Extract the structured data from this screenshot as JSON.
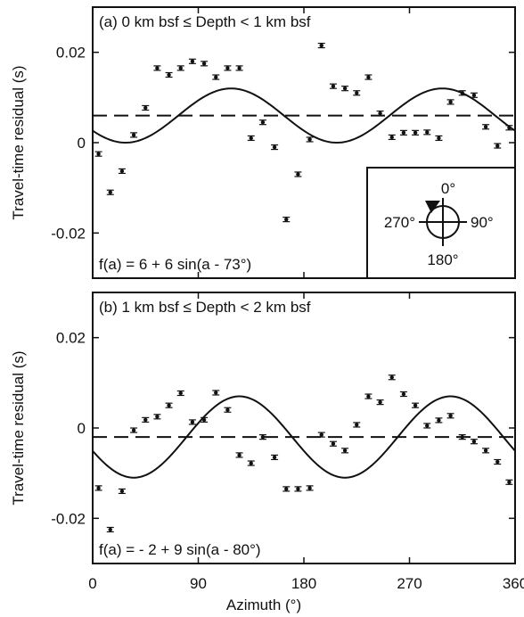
{
  "figure": {
    "xlabel": "Azimuth (°)",
    "ylabel": "Travel-time residual (s)",
    "xticks": [
      "0",
      "90",
      "180",
      "270",
      "360"
    ],
    "yticks": [
      "-0.02",
      "0",
      "0.02"
    ],
    "inset": {
      "n": "0°",
      "e": "90°",
      "s": "180°",
      "w": "270°"
    }
  },
  "chart_data": [
    {
      "type": "scatter",
      "panel": "a",
      "title": "(a) 0 km bsf ≤ Depth < 1 km bsf",
      "fit_label": "f(a) = 6 + 6 sin(a - 73°)",
      "xlabel": "",
      "ylabel": "Travel-time residual (s)",
      "xlim": [
        0,
        360
      ],
      "ylim": [
        -0.03,
        0.03
      ],
      "yticks": [
        -0.02,
        0,
        0.02
      ],
      "xticks": [
        0,
        90,
        180,
        270,
        360
      ],
      "mean_line": 0.006,
      "fit": {
        "offset": 0.006,
        "amplitude": 0.006,
        "phase_deg": 73,
        "period_factor": 2
      },
      "points": [
        [
          5,
          -0.0025
        ],
        [
          15,
          -0.011
        ],
        [
          25,
          -0.0063
        ],
        [
          35,
          0.0017
        ],
        [
          45,
          0.0077
        ],
        [
          55,
          0.0165
        ],
        [
          65,
          0.015
        ],
        [
          75,
          0.0165
        ],
        [
          85,
          0.018
        ],
        [
          95,
          0.0175
        ],
        [
          105,
          0.0145
        ],
        [
          115,
          0.0165
        ],
        [
          125,
          0.0165
        ],
        [
          135,
          0.001
        ],
        [
          145,
          0.0045
        ],
        [
          155,
          -0.001
        ],
        [
          165,
          -0.017
        ],
        [
          175,
          -0.007
        ],
        [
          185,
          0.0007
        ],
        [
          195,
          0.0215
        ],
        [
          205,
          0.0125
        ],
        [
          215,
          0.012
        ],
        [
          225,
          0.011
        ],
        [
          235,
          0.0145
        ],
        [
          245,
          0.0065
        ],
        [
          255,
          0.0012
        ],
        [
          265,
          0.0022
        ],
        [
          275,
          0.0022
        ],
        [
          285,
          0.0023
        ],
        [
          295,
          0.001
        ],
        [
          305,
          0.009
        ],
        [
          315,
          0.011
        ],
        [
          325,
          0.0105
        ],
        [
          335,
          0.0035
        ],
        [
          345,
          -0.0007
        ],
        [
          355,
          0.0033
        ]
      ]
    },
    {
      "type": "scatter",
      "panel": "b",
      "title": "(b) 1 km bsf ≤ Depth < 2 km bsf",
      "fit_label": "f(a) = - 2 + 9 sin(a - 80°)",
      "xlabel": "Azimuth (°)",
      "ylabel": "Travel-time residual (s)",
      "xlim": [
        0,
        360
      ],
      "ylim": [
        -0.03,
        0.03
      ],
      "yticks": [
        -0.02,
        0,
        0.02
      ],
      "xticks": [
        0,
        90,
        180,
        270,
        360
      ],
      "mean_line": -0.002,
      "fit": {
        "offset": -0.002,
        "amplitude": 0.009,
        "phase_deg": 80,
        "period_factor": 2
      },
      "points": [
        [
          5,
          -0.0133
        ],
        [
          15,
          -0.0225
        ],
        [
          25,
          -0.014
        ],
        [
          35,
          -0.0005
        ],
        [
          45,
          0.0018
        ],
        [
          55,
          0.0025
        ],
        [
          65,
          0.005
        ],
        [
          75,
          0.0077
        ],
        [
          85,
          0.0013
        ],
        [
          95,
          0.0018
        ],
        [
          105,
          0.0078
        ],
        [
          115,
          0.004
        ],
        [
          125,
          -0.006
        ],
        [
          135,
          -0.0078
        ],
        [
          145,
          -0.002
        ],
        [
          155,
          -0.0065
        ],
        [
          165,
          -0.0135
        ],
        [
          175,
          -0.0135
        ],
        [
          185,
          -0.0133
        ],
        [
          195,
          -0.0015
        ],
        [
          205,
          -0.0035
        ],
        [
          215,
          -0.005
        ],
        [
          225,
          0.0007
        ],
        [
          235,
          0.007
        ],
        [
          245,
          0.0057
        ],
        [
          255,
          0.0112
        ],
        [
          265,
          0.0075
        ],
        [
          275,
          0.005
        ],
        [
          285,
          0.0005
        ],
        [
          295,
          0.0017
        ],
        [
          305,
          0.0027
        ],
        [
          315,
          -0.002
        ],
        [
          325,
          -0.003
        ],
        [
          335,
          -0.005
        ],
        [
          345,
          -0.0075
        ],
        [
          355,
          -0.012
        ]
      ]
    }
  ]
}
